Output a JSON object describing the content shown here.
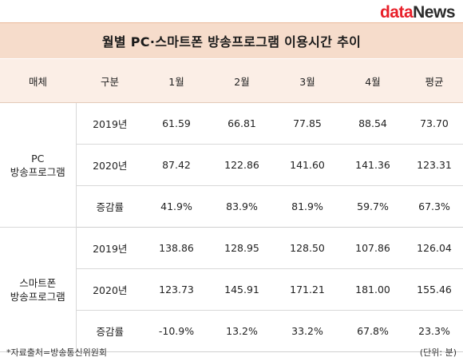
{
  "logo": {
    "part1": "data",
    "part2": "News"
  },
  "title": "월별 PC·스마트폰 방송프로그램 이용시간 추이",
  "table": {
    "headers": [
      "매체",
      "구분",
      "1월",
      "2월",
      "3월",
      "4월",
      "평균"
    ],
    "groups": [
      {
        "media_line1": "PC",
        "media_line2": "방송프로그램",
        "rows": [
          {
            "label": "2019년",
            "values": [
              "61.59",
              "66.81",
              "77.85",
              "88.54",
              "73.70"
            ]
          },
          {
            "label": "2020년",
            "values": [
              "87.42",
              "122.86",
              "141.60",
              "141.36",
              "123.31"
            ]
          },
          {
            "label": "증감률",
            "values": [
              "41.9%",
              "83.9%",
              "81.9%",
              "59.7%",
              "67.3%"
            ]
          }
        ]
      },
      {
        "media_line1": "스마트폰",
        "media_line2": "방송프로그램",
        "rows": [
          {
            "label": "2019년",
            "values": [
              "138.86",
              "128.95",
              "128.50",
              "107.86",
              "126.04"
            ]
          },
          {
            "label": "2020년",
            "values": [
              "123.73",
              "145.91",
              "171.21",
              "181.00",
              "155.46"
            ]
          },
          {
            "label": "증감률",
            "values": [
              "-10.9%",
              "13.2%",
              "33.2%",
              "67.8%",
              "23.3%"
            ]
          }
        ]
      }
    ]
  },
  "footer": {
    "source": "*자료출처=방송통신위원회",
    "unit": "(단위: 분)"
  },
  "colors": {
    "title_bg": "#f6dccb",
    "header_bg": "#fbeee6",
    "logo_accent": "#e8202a"
  }
}
